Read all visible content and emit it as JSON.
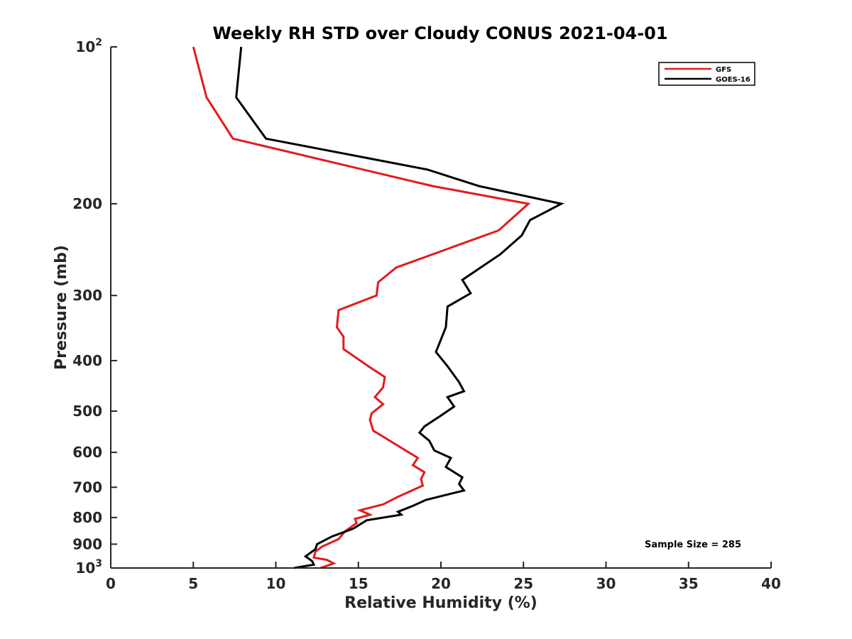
{
  "chart_data": {
    "type": "line",
    "title": "Weekly RH STD over Cloudy CONUS 2021-04-01",
    "xlabel": "Relative Humidity (%)",
    "ylabel": "Pressure (mb)",
    "xlim": [
      0,
      40
    ],
    "ylim": [
      100,
      1000
    ],
    "y_scale": "log",
    "y_reversed": true,
    "x_ticks": [
      "0",
      "5",
      "10",
      "15",
      "20",
      "25",
      "30",
      "35",
      "40"
    ],
    "y_ticks": [
      {
        "value": 100,
        "base": "10",
        "exp": "2"
      },
      {
        "value": 200,
        "label": "200"
      },
      {
        "value": 300,
        "label": "300"
      },
      {
        "value": 400,
        "label": "400"
      },
      {
        "value": 500,
        "label": "500"
      },
      {
        "value": 600,
        "label": "600"
      },
      {
        "value": 700,
        "label": "700"
      },
      {
        "value": 800,
        "label": "800"
      },
      {
        "value": 900,
        "label": "900"
      },
      {
        "value": 1000,
        "base": "10",
        "exp": "3"
      }
    ],
    "grid": false,
    "legend_position": "top-right",
    "annotation": "Sample Size = 285",
    "series": [
      {
        "name": "GFS",
        "color": "#e31a1c",
        "points": [
          [
            5.0,
            100
          ],
          [
            5.8,
            125
          ],
          [
            7.4,
            150
          ],
          [
            16.3,
            175
          ],
          [
            19.5,
            185
          ],
          [
            25.3,
            200
          ],
          [
            23.5,
            225
          ],
          [
            17.3,
            265
          ],
          [
            16.2,
            283
          ],
          [
            16.1,
            300
          ],
          [
            13.8,
            320
          ],
          [
            13.7,
            345
          ],
          [
            14.1,
            360
          ],
          [
            14.1,
            380
          ],
          [
            15.6,
            410
          ],
          [
            16.6,
            430
          ],
          [
            16.5,
            450
          ],
          [
            16.0,
            470
          ],
          [
            16.5,
            485
          ],
          [
            15.8,
            505
          ],
          [
            15.7,
            520
          ],
          [
            15.9,
            545
          ],
          [
            17.3,
            580
          ],
          [
            18.6,
            615
          ],
          [
            18.3,
            635
          ],
          [
            19.0,
            655
          ],
          [
            18.8,
            675
          ],
          [
            18.9,
            695
          ],
          [
            17.4,
            730
          ],
          [
            16.5,
            755
          ],
          [
            15.1,
            775
          ],
          [
            15.7,
            790
          ],
          [
            14.8,
            805
          ],
          [
            14.9,
            820
          ],
          [
            14.2,
            850
          ],
          [
            13.8,
            880
          ],
          [
            12.8,
            910
          ],
          [
            12.4,
            930
          ],
          [
            12.3,
            955
          ],
          [
            13.1,
            965
          ],
          [
            13.5,
            980
          ],
          [
            12.7,
            1000
          ]
        ]
      },
      {
        "name": "GOES-16",
        "color": "#000000",
        "points": [
          [
            7.9,
            100
          ],
          [
            7.6,
            125
          ],
          [
            9.4,
            150
          ],
          [
            19.2,
            172
          ],
          [
            22.3,
            185
          ],
          [
            27.3,
            200
          ],
          [
            25.4,
            215
          ],
          [
            24.9,
            230
          ],
          [
            23.6,
            250
          ],
          [
            21.3,
            280
          ],
          [
            21.8,
            297
          ],
          [
            20.4,
            315
          ],
          [
            20.3,
            345
          ],
          [
            19.7,
            385
          ],
          [
            20.4,
            410
          ],
          [
            21.1,
            440
          ],
          [
            21.4,
            458
          ],
          [
            20.4,
            470
          ],
          [
            20.8,
            490
          ],
          [
            20.0,
            510
          ],
          [
            19.0,
            535
          ],
          [
            18.7,
            550
          ],
          [
            19.3,
            570
          ],
          [
            19.6,
            595
          ],
          [
            20.6,
            615
          ],
          [
            20.3,
            640
          ],
          [
            21.3,
            670
          ],
          [
            21.1,
            690
          ],
          [
            21.4,
            710
          ],
          [
            19.1,
            740
          ],
          [
            18.3,
            760
          ],
          [
            17.4,
            780
          ],
          [
            17.6,
            790
          ],
          [
            15.5,
            810
          ],
          [
            14.7,
            840
          ],
          [
            13.4,
            870
          ],
          [
            12.5,
            900
          ],
          [
            12.4,
            920
          ],
          [
            11.8,
            950
          ],
          [
            12.2,
            970
          ],
          [
            12.3,
            985
          ],
          [
            11.1,
            1000
          ]
        ]
      }
    ]
  }
}
